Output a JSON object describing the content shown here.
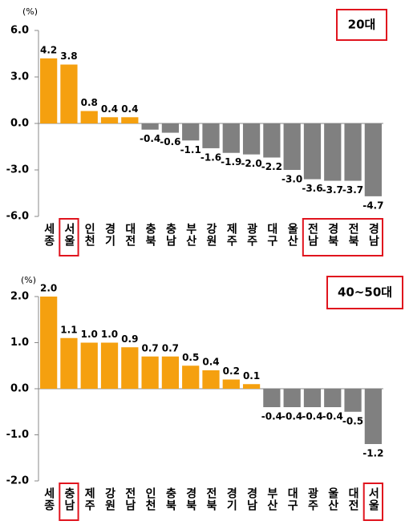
{
  "chart_data": [
    {
      "type": "bar",
      "title": "20대",
      "y_unit": "(%)",
      "categories": [
        "세종",
        "서울",
        "인천",
        "경기",
        "대전",
        "충북",
        "충남",
        "부산",
        "강원",
        "제주",
        "광주",
        "대구",
        "울산",
        "전남",
        "경북",
        "전북",
        "경남"
      ],
      "values": [
        4.2,
        3.8,
        0.8,
        0.4,
        0.4,
        -0.4,
        -0.6,
        -1.1,
        -1.6,
        -1.9,
        -2.0,
        -2.2,
        -3.0,
        -3.6,
        -3.7,
        -3.7,
        -4.7
      ],
      "value_labels": [
        "4.2",
        "3.8",
        "0.8",
        "0.4",
        "0.4",
        "-0.4",
        "-0.6",
        "-1.1",
        "-1.6",
        "-1.9",
        "-2.0",
        "-2.2",
        "-3.0",
        "-3.6",
        "-3.7",
        "-3.7",
        "-4.7"
      ],
      "positive_color": "#f5a00f",
      "negative_color": "#808080",
      "ylim": [
        -6,
        6
      ],
      "yticks": [
        {
          "value": 6,
          "label": "6.0"
        },
        {
          "value": 3,
          "label": "3.0"
        },
        {
          "value": 0,
          "label": "0.0"
        },
        {
          "value": -3,
          "label": "-3.0"
        },
        {
          "value": -6,
          "label": "-6.0"
        }
      ],
      "highlight_ranges": [
        [
          1,
          1
        ],
        [
          13,
          16
        ]
      ],
      "highlight_color": "#e0141e"
    },
    {
      "type": "bar",
      "title": "40~50대",
      "y_unit": "(%)",
      "categories": [
        "세종",
        "충남",
        "제주",
        "강원",
        "전남",
        "인천",
        "충북",
        "경북",
        "전북",
        "경기",
        "경남",
        "부산",
        "대구",
        "광주",
        "울산",
        "대전",
        "서울"
      ],
      "values": [
        2.0,
        1.1,
        1.0,
        1.0,
        0.9,
        0.7,
        0.7,
        0.5,
        0.4,
        0.2,
        0.1,
        -0.4,
        -0.4,
        -0.4,
        -0.4,
        -0.5,
        -1.2
      ],
      "value_labels": [
        "2.0",
        "1.1",
        "1.0",
        "1.0",
        "0.9",
        "0.7",
        "0.7",
        "0.5",
        "0.4",
        "0.2",
        "0.1",
        "-0.4",
        "-0.4",
        "-0.4",
        "-0.4",
        "-0.5",
        "-1.2"
      ],
      "positive_color": "#f5a00f",
      "negative_color": "#808080",
      "ylim": [
        -2,
        2
      ],
      "yticks": [
        {
          "value": 2,
          "label": "2.0"
        },
        {
          "value": 1,
          "label": "1.0"
        },
        {
          "value": 0,
          "label": "0.0"
        },
        {
          "value": -1,
          "label": "-1.0"
        },
        {
          "value": -2,
          "label": "-2.0"
        }
      ],
      "highlight_ranges": [
        [
          1,
          1
        ],
        [
          16,
          16
        ]
      ],
      "highlight_color": "#e0141e"
    }
  ]
}
